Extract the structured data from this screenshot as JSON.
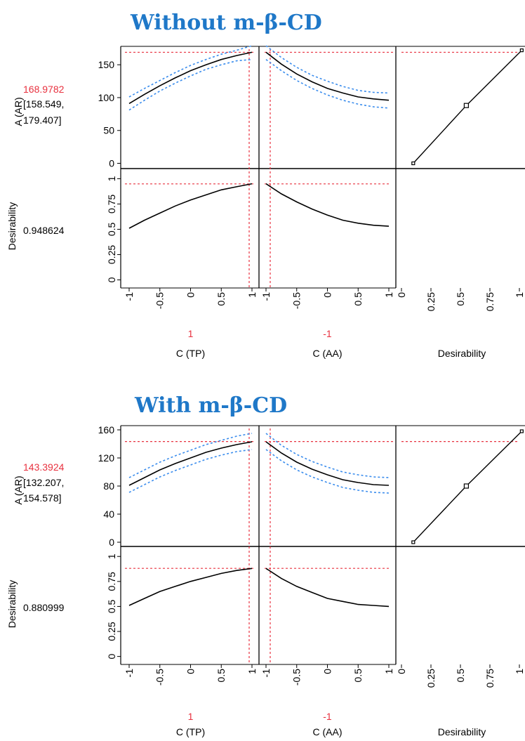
{
  "chart_data": [
    {
      "type": "line",
      "title": "Without m-β-CD",
      "response": {
        "label": "A (AR)",
        "value": "168.9782",
        "ci_low_text": "[158.549,",
        "ci_high_text": "179.407]",
        "ylim": [
          -8,
          178
        ],
        "yticks": [
          0,
          50,
          100,
          150
        ],
        "ytick_labels": [
          "0",
          "50",
          "100",
          "150"
        ]
      },
      "desirability": {
        "label": "Desirability",
        "value": "0.948624",
        "value_num": 0.948624,
        "ylim": [
          -0.08,
          1.1
        ],
        "yticks": [
          0,
          0.25,
          0.5,
          0.75,
          1
        ],
        "ytick_labels": [
          "0",
          "0.25",
          "0.5",
          "0.75",
          "1"
        ]
      },
      "factors": [
        {
          "name": "C (TP)",
          "current": "1",
          "x": [
            -1,
            -0.75,
            -0.5,
            -0.25,
            0,
            0.25,
            0.5,
            0.75,
            1
          ],
          "xticks": [
            -1,
            -0.5,
            0,
            0.5,
            1
          ],
          "xtick_labels": [
            "-1",
            "-0.5",
            "0",
            "0.5",
            "1"
          ],
          "fit": [
            91,
            105,
            118,
            130,
            141,
            150,
            158,
            164,
            169
          ],
          "lower": [
            81,
            96,
            110,
            122,
            133,
            143,
            150,
            156,
            158
          ],
          "upper": [
            101,
            114,
            126,
            138,
            149,
            158,
            166,
            172,
            179
          ],
          "desirability": [
            0.51,
            0.59,
            0.66,
            0.73,
            0.79,
            0.84,
            0.89,
            0.92,
            0.95
          ]
        },
        {
          "name": "C (AA)",
          "current": "-1",
          "x": [
            -1,
            -0.75,
            -0.5,
            -0.25,
            0,
            0.25,
            0.5,
            0.75,
            1
          ],
          "xticks": [
            -1,
            -0.5,
            0,
            0.5,
            1
          ],
          "xtick_labels": [
            "-1",
            "-0.5",
            "0",
            "0.5",
            "1"
          ],
          "fit": [
            169,
            151,
            136,
            124,
            114,
            107,
            101,
            98,
            96
          ],
          "lower": [
            158,
            141,
            126,
            114,
            104,
            96,
            90,
            86,
            84
          ],
          "upper": [
            179,
            161,
            146,
            134,
            125,
            117,
            111,
            108,
            107
          ],
          "desirability": [
            0.95,
            0.85,
            0.77,
            0.7,
            0.64,
            0.59,
            0.56,
            0.54,
            0.53
          ]
        },
        {
          "name": "Desirability",
          "xticks": [
            0,
            0.25,
            0.5,
            0.75,
            1
          ],
          "xtick_labels": [
            "0",
            "0.25",
            "0.5",
            "0.75",
            "1"
          ],
          "curve_x": [
            0.1,
            0.55,
            1.02
          ],
          "curve_y": [
            0,
            88,
            172
          ]
        }
      ]
    },
    {
      "type": "line",
      "title": "With m-β-CD",
      "response": {
        "label": "A (AR)",
        "value": "143.3924",
        "ci_low_text": "[132.207,",
        "ci_high_text": "154.578]",
        "ylim": [
          -6,
          166
        ],
        "yticks": [
          0,
          40,
          80,
          120,
          160
        ],
        "ytick_labels": [
          "0",
          "40",
          "80",
          "120",
          "160"
        ]
      },
      "desirability": {
        "label": "Desirability",
        "value": "0.880999",
        "value_num": 0.880999,
        "ylim": [
          -0.08,
          1.1
        ],
        "yticks": [
          0,
          0.25,
          0.5,
          0.75,
          1
        ],
        "ytick_labels": [
          "0",
          "0.25",
          "0.5",
          "0.75",
          "1"
        ]
      },
      "factors": [
        {
          "name": "C (TP)",
          "current": "1",
          "x": [
            -1,
            -0.75,
            -0.5,
            -0.25,
            0,
            0.25,
            0.5,
            0.75,
            1
          ],
          "xticks": [
            -1,
            -0.5,
            0,
            0.5,
            1
          ],
          "xtick_labels": [
            "-1",
            "-0.5",
            "0",
            "0.5",
            "1"
          ],
          "fit": [
            81,
            92,
            103,
            112,
            120,
            128,
            134,
            139,
            143
          ],
          "lower": [
            71,
            82,
            93,
            102,
            110,
            118,
            124,
            129,
            132
          ],
          "upper": [
            92,
            103,
            114,
            123,
            131,
            139,
            145,
            151,
            155
          ],
          "desirability": [
            0.51,
            0.58,
            0.65,
            0.7,
            0.75,
            0.79,
            0.83,
            0.86,
            0.88
          ]
        },
        {
          "name": "C (AA)",
          "current": "-1",
          "x": [
            -1,
            -0.75,
            -0.5,
            -0.25,
            0,
            0.25,
            0.5,
            0.75,
            1
          ],
          "xticks": [
            -1,
            -0.5,
            0,
            0.5,
            1
          ],
          "xtick_labels": [
            "-1",
            "-0.5",
            "0",
            "0.5",
            "1"
          ],
          "fit": [
            143,
            127,
            114,
            104,
            96,
            89,
            85,
            82,
            81
          ],
          "lower": [
            132,
            116,
            103,
            93,
            85,
            78,
            74,
            71,
            70
          ],
          "upper": [
            155,
            138,
            125,
            115,
            107,
            100,
            96,
            93,
            92
          ],
          "desirability": [
            0.88,
            0.78,
            0.7,
            0.64,
            0.58,
            0.55,
            0.52,
            0.51,
            0.5
          ]
        },
        {
          "name": "Desirability",
          "xticks": [
            0,
            0.25,
            0.5,
            0.75,
            1
          ],
          "xtick_labels": [
            "0",
            "0.25",
            "0.5",
            "0.75",
            "1"
          ],
          "curve_x": [
            0.1,
            0.55,
            1.02
          ],
          "curve_y": [
            0,
            80,
            158
          ]
        }
      ]
    }
  ],
  "colors": {
    "title": "#1f78c8",
    "current_value": "#e8313f",
    "confidence_band": "#3b8ded",
    "fit": "#000000"
  }
}
